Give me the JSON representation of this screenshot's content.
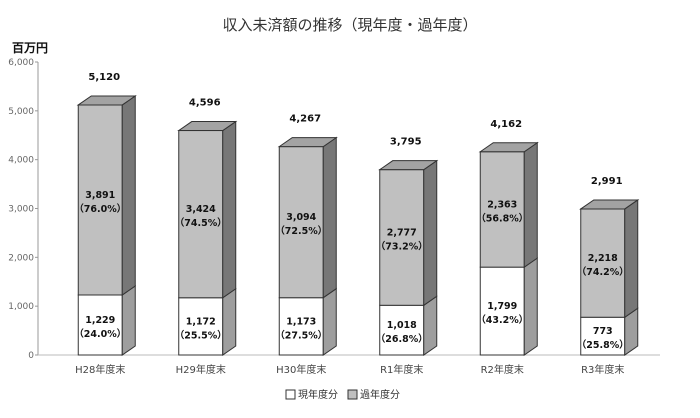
{
  "chart_data": {
    "type": "bar",
    "stacked": true,
    "three_d": true,
    "title": "収入未済額の推移（現年度・過年度）",
    "ylabel": "百万円",
    "ylim": [
      0,
      6000
    ],
    "yticks": [
      "0",
      "1,000",
      "2,000",
      "3,000",
      "4,000",
      "5,000",
      "6,000"
    ],
    "ytick_values": [
      0,
      1000,
      2000,
      3000,
      4000,
      5000,
      6000
    ],
    "grid": false,
    "legend_position": "bottom",
    "categories": [
      "H28年度末",
      "H29年度末",
      "H30年度末",
      "R1年度末",
      "R2年度末",
      "R3年度末"
    ],
    "totals": [
      5120,
      4596,
      4267,
      3795,
      4162,
      2991
    ],
    "total_labels": [
      "5,120",
      "4,596",
      "4,267",
      "3,795",
      "4,162",
      "2,991"
    ],
    "series": [
      {
        "name": "現年度分",
        "color": "#ffffff",
        "values": [
          1229,
          1172,
          1173,
          1018,
          1799,
          773
        ],
        "value_labels": [
          "1,229",
          "1,172",
          "1,173",
          "1,018",
          "1,799",
          "773"
        ],
        "pct_labels": [
          "（24.0%）",
          "（25.5%）",
          "（27.5%）",
          "（26.8%）",
          "（43.2%）",
          "（25.8%）"
        ]
      },
      {
        "name": "過年度分",
        "color": "#c0c0c0",
        "values": [
          3891,
          3424,
          3094,
          2777,
          2363,
          2218
        ],
        "value_labels": [
          "3,891",
          "3,424",
          "3,094",
          "2,777",
          "2,363",
          "2,218"
        ],
        "pct_labels": [
          "（76.0%）",
          "（74.5%）",
          "（72.5%）",
          "（73.2%）",
          "（56.8%）",
          "（74.2%）"
        ]
      }
    ]
  }
}
